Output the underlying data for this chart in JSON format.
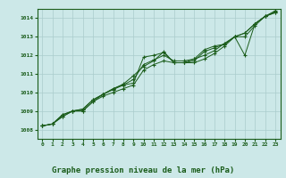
{
  "background_color": "#cce8e8",
  "plot_bg_color": "#cce8e8",
  "grid_color": "#aacccc",
  "line_color": "#1a5c1a",
  "marker_color": "#1a5c1a",
  "title": "Graphe pression niveau de la mer (hPa)",
  "xlim": [
    -0.5,
    23.5
  ],
  "ylim": [
    1007.5,
    1014.5
  ],
  "yticks": [
    1008,
    1009,
    1010,
    1011,
    1012,
    1013,
    1014
  ],
  "xticks": [
    0,
    1,
    2,
    3,
    4,
    5,
    6,
    7,
    8,
    9,
    10,
    11,
    12,
    13,
    14,
    15,
    16,
    17,
    18,
    19,
    20,
    21,
    22,
    23
  ],
  "series": [
    [
      1008.2,
      1008.3,
      1008.7,
      1009.0,
      1009.0,
      1009.5,
      1009.8,
      1010.0,
      1010.2,
      1010.4,
      1011.2,
      1011.5,
      1011.7,
      1011.6,
      1011.6,
      1011.6,
      1011.8,
      1012.1,
      1012.5,
      1013.0,
      1013.0,
      1013.6,
      1014.1,
      1014.3
    ],
    [
      1008.2,
      1008.3,
      1008.7,
      1009.0,
      1009.1,
      1009.6,
      1009.9,
      1010.2,
      1010.4,
      1010.5,
      1011.9,
      1012.0,
      1012.15,
      1011.6,
      1011.6,
      1011.7,
      1012.2,
      1012.4,
      1012.6,
      1013.0,
      1012.0,
      1013.7,
      1014.1,
      1014.3
    ],
    [
      1008.2,
      1008.3,
      1008.8,
      1009.0,
      1009.0,
      1009.5,
      1009.9,
      1010.2,
      1010.45,
      1010.9,
      1011.4,
      1011.7,
      1012.2,
      1011.6,
      1011.6,
      1011.8,
      1012.3,
      1012.5,
      1012.6,
      1013.0,
      1013.2,
      1013.7,
      1014.1,
      1014.4
    ],
    [
      1008.2,
      1008.3,
      1008.8,
      1009.0,
      1009.1,
      1009.6,
      1009.9,
      1010.15,
      1010.4,
      1010.7,
      1011.5,
      1011.75,
      1012.0,
      1011.7,
      1011.7,
      1011.8,
      1012.0,
      1012.25,
      1012.65,
      1013.0,
      1013.2,
      1013.7,
      1014.1,
      1014.35
    ]
  ]
}
